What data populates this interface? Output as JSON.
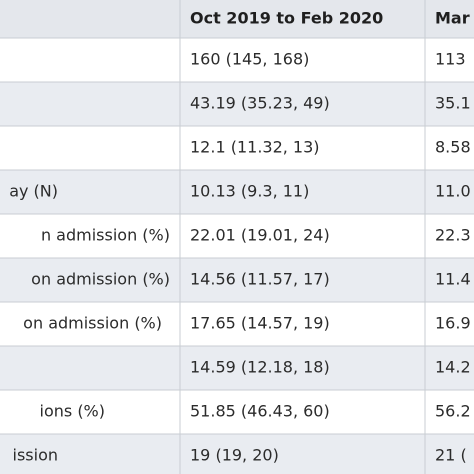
{
  "table": {
    "header": [
      "Oct 2019 to Feb 2020",
      "Mar"
    ],
    "rows": [
      {
        "cells": [
          "160 (145, 168)",
          "113"
        ]
      },
      {
        "cells": [
          "43.19 (35.23, 49)",
          "35.1"
        ]
      },
      {
        "cells": [
          "12.1 (11.32, 13)",
          "8.58"
        ]
      },
      {
        "label": "ay (N)",
        "cells": [
          "10.13 (9.3, 11)",
          "11.0"
        ]
      },
      {
        "label": "n admission (%)",
        "cells": [
          "22.01 (19.01, 24)",
          "22.3"
        ]
      },
      {
        "label": "on admission (%)",
        "cells": [
          "14.56 (11.57, 17)",
          "11.4"
        ]
      },
      {
        "label": "on admission (%)",
        "cells": [
          "17.65 (14.57, 19)",
          "16.9"
        ]
      },
      {
        "cells": [
          "14.59 (12.18, 18)",
          "14.2"
        ]
      },
      {
        "label": "ions (%)",
        "cells": [
          "51.85 (46.43, 60)",
          "56.2"
        ]
      },
      {
        "label": "ission",
        "cells": [
          "19 (19, 20)",
          "21 ("
        ]
      }
    ]
  }
}
